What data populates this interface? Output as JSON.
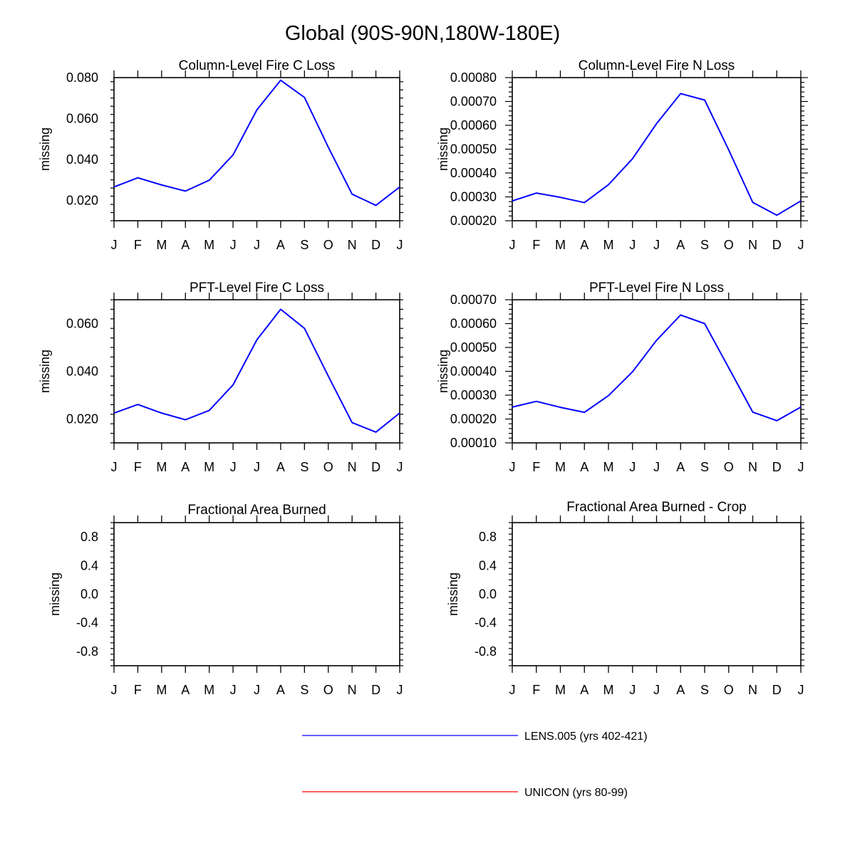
{
  "title": "Global (90S-90N,180W-180E)",
  "chart_data": [
    {
      "type": "line",
      "title": "Column-Level Fire C Loss",
      "ylabel": "missing",
      "categories": [
        "J",
        "F",
        "M",
        "A",
        "M",
        "J",
        "J",
        "A",
        "S",
        "O",
        "N",
        "D",
        "J"
      ],
      "ylim": [
        0.01,
        0.08
      ],
      "yticks": [
        "0.020",
        "0.040",
        "0.060",
        "0.080"
      ],
      "series": [
        {
          "name": "LENS.005 (yrs 402-421)",
          "color": "#0000ff",
          "values": [
            0.0265,
            0.031,
            0.0275,
            0.0245,
            0.0298,
            0.0422,
            0.0642,
            0.0787,
            0.0703,
            0.046,
            0.023,
            0.0175,
            0.0265
          ]
        }
      ]
    },
    {
      "type": "line",
      "title": "Column-Level Fire N Loss",
      "ylabel": "missing",
      "categories": [
        "J",
        "F",
        "M",
        "A",
        "M",
        "J",
        "J",
        "A",
        "S",
        "O",
        "N",
        "D",
        "J"
      ],
      "ylim": [
        0.0002,
        0.0008
      ],
      "yticks": [
        "0.00020",
        "0.00030",
        "0.00040",
        "0.00050",
        "0.00060",
        "0.00070",
        "0.00080"
      ],
      "series": [
        {
          "name": "LENS.005 (yrs 402-421)",
          "color": "#0000ff",
          "values": [
            0.000283,
            0.000316,
            0.000298,
            0.000276,
            0.000351,
            0.00046,
            0.000607,
            0.000733,
            0.000706,
            0.000497,
            0.000277,
            0.000223,
            0.000283
          ]
        }
      ]
    },
    {
      "type": "line",
      "title": "PFT-Level Fire C Loss",
      "ylabel": "missing",
      "categories": [
        "J",
        "F",
        "M",
        "A",
        "M",
        "J",
        "J",
        "A",
        "S",
        "O",
        "N",
        "D",
        "J"
      ],
      "ylim": [
        0.01,
        0.07
      ],
      "yticks": [
        "0.020",
        "0.040",
        "0.060"
      ],
      "series": [
        {
          "name": "LENS.005 (yrs 402-421)",
          "color": "#0000ff",
          "values": [
            0.0225,
            0.0261,
            0.0225,
            0.0197,
            0.0236,
            0.0343,
            0.0532,
            0.066,
            0.058,
            0.038,
            0.0185,
            0.0145,
            0.0225
          ]
        }
      ]
    },
    {
      "type": "line",
      "title": "PFT-Level Fire N Loss",
      "ylabel": "missing",
      "categories": [
        "J",
        "F",
        "M",
        "A",
        "M",
        "J",
        "J",
        "A",
        "S",
        "O",
        "N",
        "D",
        "J"
      ],
      "ylim": [
        0.0001,
        0.0007
      ],
      "yticks": [
        "0.00010",
        "0.00020",
        "0.00030",
        "0.00040",
        "0.00050",
        "0.00060",
        "0.00070"
      ],
      "series": [
        {
          "name": "LENS.005 (yrs 402-421)",
          "color": "#0000ff",
          "values": [
            0.00025,
            0.000274,
            0.000249,
            0.000228,
            0.000298,
            0.000398,
            0.00053,
            0.000636,
            0.0006,
            0.000415,
            0.000229,
            0.000193,
            0.00025
          ]
        }
      ]
    },
    {
      "type": "line",
      "title": "Fractional Area Burned",
      "ylabel": "missing",
      "categories": [
        "J",
        "F",
        "M",
        "A",
        "M",
        "J",
        "J",
        "A",
        "S",
        "O",
        "N",
        "D",
        "J"
      ],
      "ylim": [
        -1.0,
        1.0
      ],
      "yticks": [
        "-0.8",
        "-0.4",
        "0.0",
        "0.4",
        "0.8"
      ],
      "series": []
    },
    {
      "type": "line",
      "title": "Fractional Area Burned - Crop",
      "ylabel": "missing",
      "categories": [
        "J",
        "F",
        "M",
        "A",
        "M",
        "J",
        "J",
        "A",
        "S",
        "O",
        "N",
        "D",
        "J"
      ],
      "ylim": [
        -1.0,
        1.0
      ],
      "yticks": [
        "-0.8",
        "-0.4",
        "0.0",
        "0.4",
        "0.8"
      ],
      "series": []
    }
  ],
  "legend": {
    "placement": "bottom-center",
    "items": [
      {
        "label": "LENS.005 (yrs 402-421)",
        "color": "#0000ff"
      },
      {
        "label": "UNICON (yrs 80-99)",
        "color": "#ff0000"
      }
    ]
  }
}
